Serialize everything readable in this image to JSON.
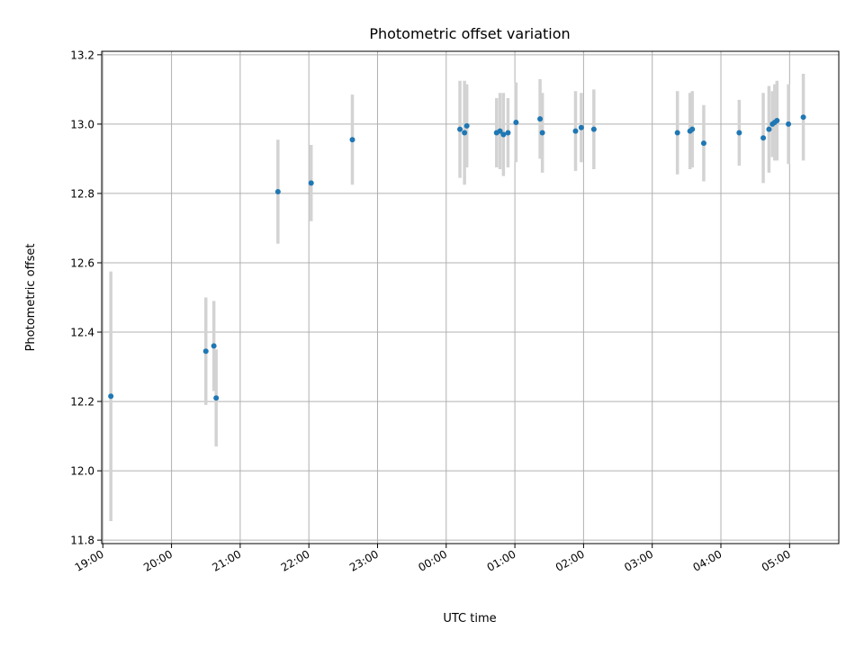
{
  "chart_data": {
    "type": "scatter",
    "title": "Photometric offset variation",
    "xlabel": "UTC time",
    "ylabel": "Photometric offset",
    "x_axis_kind": "time-of-day, spanning midnight",
    "xlim": [
      "18:59",
      "05:43"
    ],
    "ylim": [
      11.79,
      13.21
    ],
    "x_ticks": [
      "19:00",
      "20:00",
      "21:00",
      "22:00",
      "23:00",
      "00:00",
      "01:00",
      "02:00",
      "03:00",
      "04:00",
      "05:00"
    ],
    "y_ticks": [
      "11.8",
      "12.0",
      "12.2",
      "12.4",
      "12.6",
      "12.8",
      "13.0",
      "13.2"
    ],
    "grid": true,
    "legend": "none",
    "colors": {
      "point": "#1f77b4",
      "error_bar": "#d3d3d3",
      "grid": "#b0b0b0"
    },
    "series": [
      {
        "x": [
          "19:07",
          "20:30",
          "20:37",
          "20:39",
          "21:33",
          "22:02",
          "22:38",
          "00:12",
          "00:16",
          "00:18",
          "00:44",
          "00:47",
          "00:50",
          "00:54",
          "01:01",
          "01:22",
          "01:24",
          "01:53",
          "01:58",
          "02:09",
          "03:22",
          "03:33",
          "03:35",
          "03:45",
          "04:16",
          "04:37",
          "04:42",
          "04:45",
          "04:47",
          "04:49",
          "04:59",
          "05:12"
        ],
        "y": [
          12.215,
          12.345,
          12.36,
          12.21,
          12.805,
          12.83,
          12.955,
          12.985,
          12.975,
          12.995,
          12.975,
          12.98,
          12.97,
          12.975,
          13.005,
          13.015,
          12.975,
          12.98,
          12.99,
          12.985,
          12.975,
          12.98,
          12.985,
          12.945,
          12.975,
          12.96,
          12.985,
          13.0,
          13.005,
          13.01,
          13.0,
          13.02
        ],
        "y_err": [
          0.36,
          0.155,
          0.13,
          0.14,
          0.15,
          0.11,
          0.13,
          0.14,
          0.15,
          0.12,
          0.1,
          0.11,
          0.12,
          0.1,
          0.115,
          0.115,
          0.115,
          0.115,
          0.1,
          0.115,
          0.12,
          0.11,
          0.11,
          0.11,
          0.095,
          0.13,
          0.125,
          0.095,
          0.11,
          0.115,
          0.115,
          0.125
        ]
      }
    ]
  }
}
